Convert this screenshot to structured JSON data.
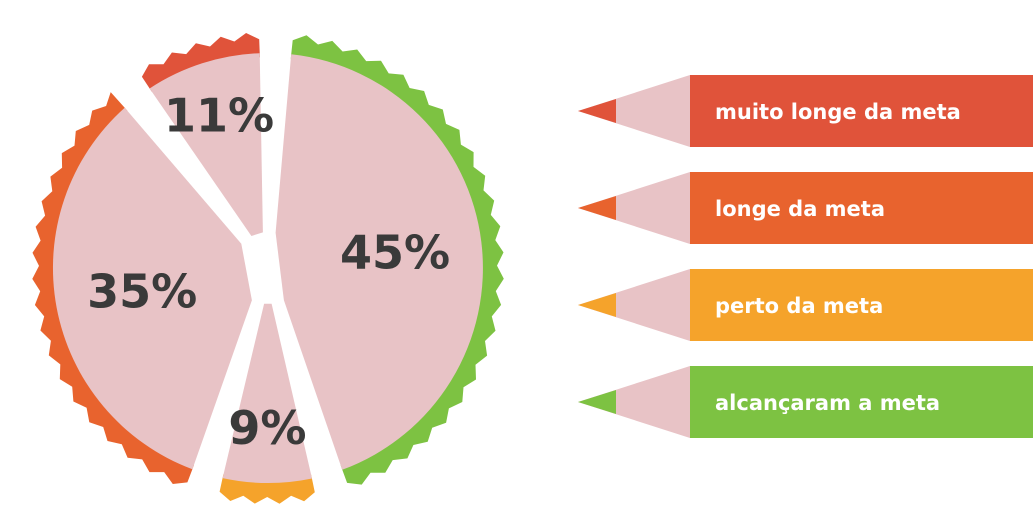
{
  "chart_data": {
    "type": "pie",
    "title": "",
    "slices": [
      {
        "label": "alcançaram a meta",
        "value": 45,
        "value_label": "45%",
        "color": "#7dc242"
      },
      {
        "label": "perto da meta",
        "value": 9,
        "value_label": "9%",
        "color": "#f5a32b"
      },
      {
        "label": "longe da meta",
        "value": 35,
        "value_label": "35%",
        "color": "#e8632e"
      },
      {
        "label": "muito longe da meta",
        "value": 11,
        "value_label": "11%",
        "color": "#e0533a"
      }
    ],
    "legend": {
      "placement": "right",
      "items": [
        {
          "label": "muito longe da meta",
          "color": "#e0533a"
        },
        {
          "label": "longe da meta",
          "color": "#e8632e"
        },
        {
          "label": "perto da meta",
          "color": "#f5a32b"
        },
        {
          "label": "alcançaram a meta",
          "color": "#7dc242"
        }
      ]
    },
    "slice_fill_color": "#e8c3c6"
  }
}
